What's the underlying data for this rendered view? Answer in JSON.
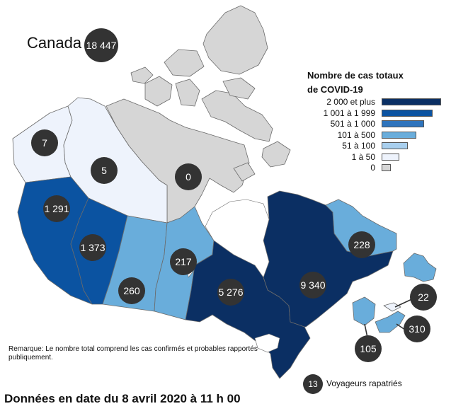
{
  "country": {
    "name": "Canada",
    "total": "18 447"
  },
  "legend": {
    "title": "Nombre de cas totaux\nde COVID-19",
    "items": [
      {
        "label": "2 000 et plus",
        "color": "#0b2f63",
        "bar": 1.0
      },
      {
        "label": "1 001 à 1 999",
        "color": "#0b53a1",
        "bar": 0.86
      },
      {
        "label": "501 à 1 000",
        "color": "#2e74bd",
        "bar": 0.72
      },
      {
        "label": "101 à 500",
        "color": "#69addb",
        "bar": 0.58
      },
      {
        "label": "51 à 100",
        "color": "#a8cfee",
        "bar": 0.44
      },
      {
        "label": "1 à 50",
        "color": "#eef3fc",
        "bar": 0.3
      },
      {
        "label": "0",
        "color": "#d6d6d6",
        "bar": 0.16
      }
    ]
  },
  "regions": [
    {
      "id": "yukon",
      "value": "7",
      "color": "#eef3fc"
    },
    {
      "id": "northwest-territories",
      "value": "5",
      "color": "#eef3fc"
    },
    {
      "id": "nunavut",
      "value": "0",
      "color": "#d6d6d6"
    },
    {
      "id": "british-columbia",
      "value": "1 291",
      "color": "#0b53a1"
    },
    {
      "id": "alberta",
      "value": "1 373",
      "color": "#0b53a1"
    },
    {
      "id": "saskatchewan",
      "value": "260",
      "color": "#69addb"
    },
    {
      "id": "manitoba",
      "value": "217",
      "color": "#69addb"
    },
    {
      "id": "ontario",
      "value": "5 276",
      "color": "#0b2f63"
    },
    {
      "id": "quebec",
      "value": "9 340",
      "color": "#0b2f63"
    },
    {
      "id": "newfoundland-labrador",
      "value": "228",
      "color": "#69addb"
    },
    {
      "id": "prince-edward-island",
      "value": "22",
      "color": "#eef3fc"
    },
    {
      "id": "nova-scotia",
      "value": "310",
      "color": "#69addb"
    },
    {
      "id": "new-brunswick",
      "value": "105",
      "color": "#69addb"
    }
  ],
  "repatriated": {
    "value": "13",
    "label": "Voyageurs rapatriés"
  },
  "remark": "Remarque: Le nombre total comprend les cas confirmés et probables rapportés publiquement.",
  "date_line": "Données en date du 8 avril 2020 à 11 h 00"
}
